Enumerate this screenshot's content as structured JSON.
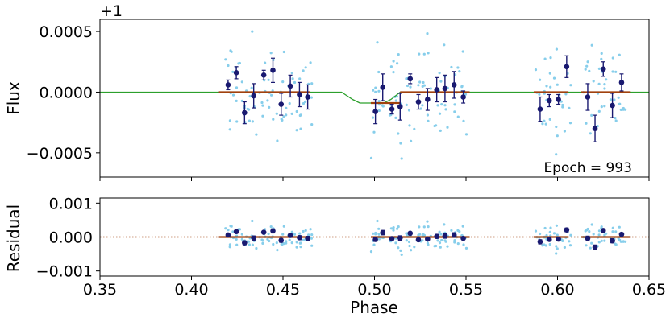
{
  "chart_data": [
    {
      "type": "scatter",
      "panel": "top",
      "ylabel": "Flux",
      "offset_label": "+1",
      "annotation": "Epoch = 993",
      "xlim": [
        0.35,
        0.65
      ],
      "ylim": [
        -0.0007,
        0.0006
      ],
      "yticks": [
        0.0005,
        0.0,
        -0.0005
      ],
      "ytick_labels": [
        "0.0005",
        "0.0000",
        "−0.0005"
      ],
      "model_curve": {
        "name": "transit model",
        "x": [
          0.35,
          0.482,
          0.488,
          0.492,
          0.505,
          0.509,
          0.514,
          0.65
        ],
        "y": [
          0.0,
          0.0,
          -6e-05,
          -9e-05,
          -9e-05,
          -6e-05,
          0.0,
          0.0
        ]
      },
      "binned_model_segments": [
        {
          "x": [
            0.415,
            0.465
          ],
          "y": 0.0
        },
        {
          "x": [
            0.498,
            0.514
          ],
          "y": -9e-05
        },
        {
          "x": [
            0.514,
            0.552
          ],
          "y": 0.0
        },
        {
          "x": [
            0.587,
            0.606
          ],
          "y": 0.0
        },
        {
          "x": [
            0.613,
            0.64
          ],
          "y": 0.0
        }
      ],
      "binned": {
        "x": [
          0.42,
          0.4245,
          0.429,
          0.434,
          0.4395,
          0.4445,
          0.449,
          0.454,
          0.459,
          0.4635,
          0.5005,
          0.5045,
          0.5095,
          0.514,
          0.5195,
          0.524,
          0.529,
          0.534,
          0.5385,
          0.5435,
          0.5485,
          0.5905,
          0.5955,
          0.6005,
          0.605,
          0.6165,
          0.6205,
          0.625,
          0.63,
          0.635
        ],
        "y": [
          6e-05,
          0.00016,
          -0.00017,
          -3e-05,
          0.00014,
          0.00018,
          -0.0001,
          5e-05,
          -2e-05,
          -4e-05,
          -0.00016,
          4e-05,
          -0.00014,
          -0.00012,
          0.00011,
          -8e-05,
          -6e-05,
          2e-05,
          3e-05,
          6e-05,
          -4e-05,
          -0.00014,
          -7e-05,
          -6e-05,
          0.00021,
          -4e-05,
          -0.0003,
          0.00019,
          -0.00011,
          8e-05
        ],
        "err": [
          4e-05,
          5e-05,
          9e-05,
          0.0001,
          4e-05,
          0.0001,
          9e-05,
          9e-05,
          0.0001,
          0.0001,
          0.0001,
          0.00011,
          4e-05,
          0.00011,
          4e-05,
          6e-05,
          9e-05,
          0.0001,
          0.00011,
          0.00011,
          5e-05,
          0.0001,
          5e-05,
          4e-05,
          9e-05,
          0.00011,
          0.00011,
          6e-05,
          0.0001,
          7e-05
        ]
      },
      "raw_seed": 993
    },
    {
      "type": "scatter",
      "panel": "bottom",
      "ylabel": "Residual",
      "xlabel": "Phase",
      "xlim": [
        0.35,
        0.65
      ],
      "ylim": [
        -0.00115,
        0.00115
      ],
      "xticks": [
        0.35,
        0.4,
        0.45,
        0.5,
        0.55,
        0.6,
        0.65
      ],
      "xtick_labels": [
        "0.35",
        "0.40",
        "0.45",
        "0.50",
        "0.55",
        "0.60",
        "0.65"
      ],
      "yticks": [
        0.001,
        0.0,
        -0.001
      ],
      "ytick_labels": [
        "0.001",
        "0.000",
        "−0.001"
      ],
      "zero_line": 0.0,
      "binned_residuals": {
        "x": [
          0.42,
          0.4245,
          0.429,
          0.434,
          0.4395,
          0.4445,
          0.449,
          0.454,
          0.459,
          0.4635,
          0.5005,
          0.5045,
          0.5095,
          0.514,
          0.5195,
          0.524,
          0.529,
          0.534,
          0.5385,
          0.5435,
          0.5485,
          0.5905,
          0.5955,
          0.6005,
          0.605,
          0.6165,
          0.6205,
          0.625,
          0.63,
          0.635
        ],
        "y": [
          6e-05,
          0.00016,
          -0.00017,
          -3e-05,
          0.00014,
          0.00018,
          -0.0001,
          5e-05,
          -2e-05,
          -4e-05,
          -7e-05,
          0.00013,
          -5e-05,
          -3e-05,
          0.00011,
          -8e-05,
          -6e-05,
          2e-05,
          3e-05,
          6e-05,
          -4e-05,
          -0.00014,
          -7e-05,
          -6e-05,
          0.00021,
          -4e-05,
          -0.0003,
          0.00019,
          -0.00011,
          8e-05
        ],
        "err": [
          4e-05,
          5e-05,
          9e-05,
          0.0001,
          4e-05,
          0.0001,
          9e-05,
          9e-05,
          0.0001,
          0.0001,
          0.0001,
          0.00011,
          4e-05,
          0.00011,
          4e-05,
          6e-05,
          9e-05,
          0.0001,
          0.00011,
          0.00011,
          5e-05,
          0.0001,
          5e-05,
          4e-05,
          9e-05,
          0.00011,
          0.00011,
          6e-05,
          0.0001,
          7e-05
        ]
      }
    }
  ],
  "colors": {
    "raw": "#87ceeb",
    "binned": "#191970",
    "model": "#2ca02c",
    "binned_model": "#a0410d",
    "zero_line": "#a0410d",
    "axes": "#000000"
  }
}
